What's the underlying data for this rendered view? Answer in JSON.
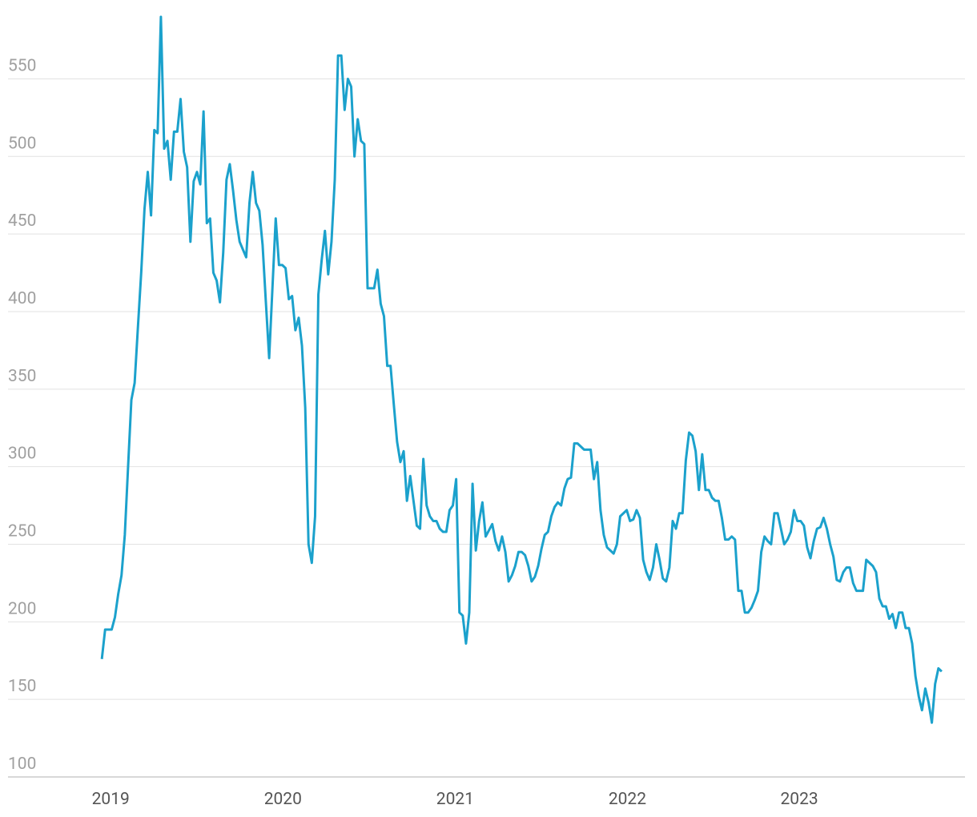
{
  "chart_data": {
    "type": "line",
    "color": "#1ba1cc",
    "grid": true,
    "ylim": [
      100,
      590
    ],
    "yticks": [
      100,
      150,
      200,
      250,
      300,
      350,
      400,
      450,
      500,
      550
    ],
    "xlim": [
      -28.6,
      263.1
    ],
    "xticks": [
      {
        "value": 2.7,
        "label": "2019"
      },
      {
        "value": 55.2,
        "label": "2020"
      },
      {
        "value": 107.7,
        "label": "2021"
      },
      {
        "value": 160.2,
        "label": "2022"
      },
      {
        "value": 212.6,
        "label": "2023"
      }
    ],
    "values": [
      176,
      195,
      195,
      195,
      203,
      218,
      230,
      256,
      300,
      343,
      354,
      390,
      425,
      466,
      490,
      462,
      517,
      515,
      590,
      505,
      510,
      485,
      516,
      516,
      537,
      503,
      493,
      445,
      484,
      490,
      482,
      529,
      457,
      460,
      425,
      420,
      406,
      438,
      485,
      495,
      478,
      459,
      445,
      440,
      435,
      470,
      490,
      470,
      465,
      443,
      406,
      370,
      415,
      460,
      430,
      430,
      428,
      408,
      410,
      388,
      396,
      378,
      338,
      250,
      238,
      268,
      411,
      433,
      452,
      424,
      445,
      485,
      565,
      565,
      530,
      550,
      545,
      500,
      524,
      510,
      508,
      415,
      415,
      415,
      427,
      405,
      397,
      365,
      365,
      340,
      316,
      303,
      310,
      278,
      294,
      278,
      262,
      260,
      305,
      275,
      268,
      265,
      265,
      260,
      258,
      258,
      272,
      275,
      292,
      206,
      204,
      186,
      206,
      289,
      246,
      265,
      277,
      255,
      259,
      263,
      252,
      246,
      255,
      245,
      226,
      230,
      236,
      245,
      245,
      243,
      236,
      226,
      229,
      236,
      247,
      256,
      258,
      268,
      274,
      277,
      275,
      286,
      292,
      293,
      315,
      315,
      313,
      311,
      311,
      311,
      292,
      303,
      272,
      256,
      248,
      246,
      244,
      250,
      268,
      270,
      272,
      265,
      266,
      272,
      267,
      240,
      232,
      227,
      235,
      250,
      240,
      228,
      226,
      235,
      265,
      260,
      270,
      270,
      304,
      322,
      320,
      310,
      285,
      308,
      285,
      285,
      280,
      278,
      278,
      267,
      253,
      253,
      255,
      253,
      220,
      220,
      206,
      206,
      209,
      214,
      220,
      245,
      255,
      252,
      250,
      270,
      270,
      260,
      250,
      253,
      258,
      272,
      265,
      265,
      262,
      248,
      241,
      252,
      260,
      261,
      267,
      260,
      250,
      242,
      227,
      226,
      232,
      235,
      235,
      225,
      220,
      220,
      220,
      240,
      238,
      236,
      232,
      215,
      210,
      210,
      202,
      205,
      196,
      206,
      206,
      196,
      196,
      186,
      165,
      152,
      143,
      157,
      148,
      135,
      160,
      170,
      168
    ]
  }
}
